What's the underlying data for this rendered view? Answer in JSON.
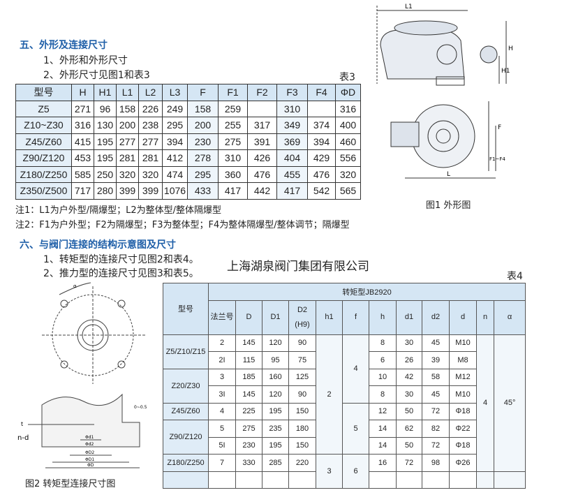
{
  "section5": {
    "title": "五、外形及连接尺寸",
    "item1": "1、外形和外形尺寸",
    "item2": "2、外形尺寸见图1和表3"
  },
  "table3": {
    "label": "表3",
    "headers": [
      "型号",
      "H",
      "H1",
      "L1",
      "L2",
      "L3",
      "F",
      "F1",
      "F2",
      "F3",
      "F4",
      "ΦD"
    ],
    "rows": [
      [
        "Z5",
        "271",
        "96",
        "158",
        "226",
        "249",
        "158",
        "259",
        "",
        "310",
        "",
        "316"
      ],
      [
        "Z10~Z30",
        "316",
        "130",
        "200",
        "238",
        "295",
        "200",
        "255",
        "317",
        "349",
        "374",
        "400"
      ],
      [
        "Z45/Z60",
        "415",
        "195",
        "277",
        "277",
        "394",
        "230",
        "275",
        "391",
        "369",
        "394",
        "460"
      ],
      [
        "Z90/Z120",
        "453",
        "195",
        "281",
        "281",
        "412",
        "278",
        "310",
        "426",
        "404",
        "429",
        "556"
      ],
      [
        "Z180/Z250",
        "585",
        "250",
        "320",
        "320",
        "474",
        "295",
        "360",
        "476",
        "455",
        "476",
        "320"
      ],
      [
        "Z350/Z500",
        "717",
        "280",
        "399",
        "399",
        "1076",
        "433",
        "417",
        "442",
        "417",
        "542",
        "565"
      ]
    ]
  },
  "notes": {
    "note1": "注1：L1为户外型/隔爆型；L2为整体型/整体隔爆型",
    "note2": "注2：F1为户外型；F2为隔爆型；F3为整体型；F4为整体隔爆型/整体调节；隔爆型"
  },
  "figure1": {
    "caption": "图1 外形图",
    "labels": {
      "l1": "L1",
      "h": "H",
      "h1": "H1",
      "f": "F",
      "f14": "F1~F4",
      "l": "L"
    }
  },
  "section6": {
    "title": "六、与阀门连接的结构示意图及尺寸",
    "item1": "1、转矩型的连接尺寸见图2和表4。",
    "item2": "2、推力型的连接尺寸见图3和表5。"
  },
  "company": "上海湖泉阀门集团有限公司",
  "figure2": {
    "caption": "图2  转矩型连接尺寸图",
    "labels": {
      "nd": "n-d",
      "t": "t",
      "d1": "Φd1",
      "d2": "Φd2",
      "D2": "ΦD2",
      "D1": "ΦD1",
      "D": "ΦD",
      "a": "α",
      "f": "0~0.5"
    }
  },
  "table4": {
    "label": "表4",
    "group": "转矩型JB2920",
    "model_header": "型号",
    "headers": [
      "法兰号",
      "D",
      "D1",
      "D2\n(H9)",
      "h1",
      "f",
      "h",
      "d1",
      "d2",
      "d",
      "n",
      "α"
    ],
    "models": [
      {
        "name": "Z5/Z10/Z15",
        "span": 2
      },
      {
        "name": "Z20/Z30",
        "span": 2
      },
      {
        "name": "Z45/Z60",
        "span": 1
      },
      {
        "name": "Z90/Z120",
        "span": 2
      },
      {
        "name": "Z180/Z250",
        "span": 1
      },
      {
        "name": "",
        "span": 1
      }
    ],
    "rows": [
      [
        "2",
        "145",
        "120",
        "90",
        "8",
        "30",
        "45",
        "M10"
      ],
      [
        "2I",
        "115",
        "95",
        "75",
        "6",
        "26",
        "39",
        "M8"
      ],
      [
        "3",
        "185",
        "160",
        "125",
        "10",
        "42",
        "58",
        "M12"
      ],
      [
        "3I",
        "145",
        "120",
        "90",
        "8",
        "30",
        "45",
        "M10"
      ],
      [
        "4",
        "225",
        "195",
        "150",
        "12",
        "50",
        "72",
        "Φ18"
      ],
      [
        "5",
        "275",
        "235",
        "180",
        "14",
        "62",
        "82",
        "Φ22"
      ],
      [
        "5I",
        "230",
        "195",
        "150",
        "14",
        "50",
        "72",
        "Φ18"
      ],
      [
        "7",
        "330",
        "285",
        "220",
        "16",
        "72",
        "98",
        "Φ26"
      ],
      [
        "",
        "",
        "",
        "",
        "",
        "",
        "",
        ""
      ]
    ],
    "h1": [
      {
        "v": "2",
        "span": 7
      },
      {
        "v": "3",
        "span": 2
      }
    ],
    "f": [
      {
        "v": "4",
        "span": 4
      },
      {
        "v": "5",
        "span": 3
      },
      {
        "v": "6",
        "span": 2
      }
    ],
    "n": [
      {
        "v": "4",
        "span": 8
      },
      {
        "v": "",
        "span": 1
      }
    ],
    "alpha": [
      {
        "v": "45°",
        "span": 8
      },
      {
        "v": "",
        "span": 1
      }
    ]
  }
}
